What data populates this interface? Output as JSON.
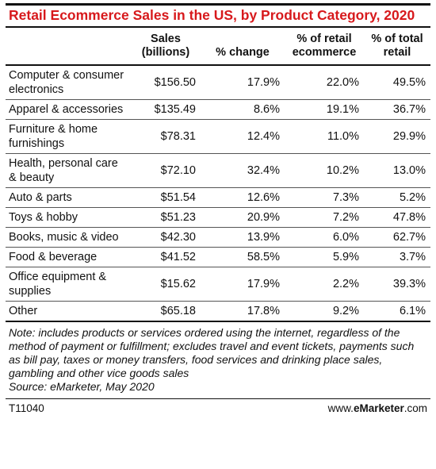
{
  "title": "Retail Ecommerce Sales in the US, by Product Category, 2020",
  "chart_data": {
    "type": "table",
    "title": "Retail Ecommerce Sales in the US, by Product Category, 2020",
    "columns": [
      "",
      "Sales (billions)",
      "% change",
      "% of retail ecommerce",
      "% of total retail"
    ],
    "rows": [
      {
        "category": "Computer & consumer electronics",
        "sales": "$156.50",
        "change": "17.9%",
        "pct_ecommerce": "22.0%",
        "pct_total": "49.5%"
      },
      {
        "category": "Apparel & accessories",
        "sales": "$135.49",
        "change": "8.6%",
        "pct_ecommerce": "19.1%",
        "pct_total": "36.7%"
      },
      {
        "category": "Furniture & home furnishings",
        "sales": "$78.31",
        "change": "12.4%",
        "pct_ecommerce": "11.0%",
        "pct_total": "29.9%"
      },
      {
        "category": "Health, personal care & beauty",
        "sales": "$72.10",
        "change": "32.4%",
        "pct_ecommerce": "10.2%",
        "pct_total": "13.0%"
      },
      {
        "category": "Auto & parts",
        "sales": "$51.54",
        "change": "12.6%",
        "pct_ecommerce": "7.3%",
        "pct_total": "5.2%"
      },
      {
        "category": "Toys & hobby",
        "sales": "$51.23",
        "change": "20.9%",
        "pct_ecommerce": "7.2%",
        "pct_total": "47.8%"
      },
      {
        "category": "Books, music & video",
        "sales": "$42.30",
        "change": "13.9%",
        "pct_ecommerce": "6.0%",
        "pct_total": "62.7%"
      },
      {
        "category": "Food & beverage",
        "sales": "$41.52",
        "change": "58.5%",
        "pct_ecommerce": "5.9%",
        "pct_total": "3.7%"
      },
      {
        "category": "Office equipment & supplies",
        "sales": "$15.62",
        "change": "17.9%",
        "pct_ecommerce": "2.2%",
        "pct_total": "39.3%"
      },
      {
        "category": "Other",
        "sales": "$65.18",
        "change": "17.8%",
        "pct_ecommerce": "9.2%",
        "pct_total": "6.1%"
      }
    ]
  },
  "note": "Note: includes products or services ordered using the internet, regardless of the method of payment or fulfillment; excludes travel and event tickets, payments such as bill pay, taxes or money transfers, food services and drinking place sales, gambling and other vice goods sales",
  "source": "Source: eMarketer, May 2020",
  "footer": {
    "id": "T11040",
    "brand_prefix": "www.",
    "brand_bold": "eMarketer",
    "brand_suffix": ".com"
  },
  "colors": {
    "title": "#d7191c",
    "rule": "#111111"
  }
}
